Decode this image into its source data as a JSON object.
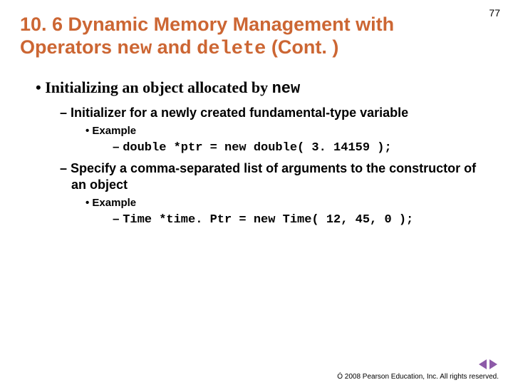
{
  "page_number": "77",
  "title": {
    "prefix": "10. 6 Dynamic Memory Management with Operators ",
    "kw1": "new",
    "mid": " and ",
    "kw2": "delete",
    "suffix": " (Cont. )",
    "color": "#cc6633",
    "font_size_pt": 27
  },
  "content": {
    "l1": {
      "text_before": "Initializing an object allocated by ",
      "kw": "new"
    },
    "l2a": "Initializer for a newly created fundamental-type variable",
    "l3a": "Example",
    "l4a": "double *ptr = new double( 3. 14159 );",
    "l2b": "Specify a comma-separated list of arguments to the constructor of an object",
    "l3b": "Example",
    "l4b": "Time *time. Ptr = new Time( 12, 45, 0 );"
  },
  "footer": {
    "copyright_symbol": "Ó",
    "text": " 2008 Pearson Education, Inc.  All rights reserved."
  },
  "nav": {
    "arrow_color": "#8d5aa8"
  }
}
